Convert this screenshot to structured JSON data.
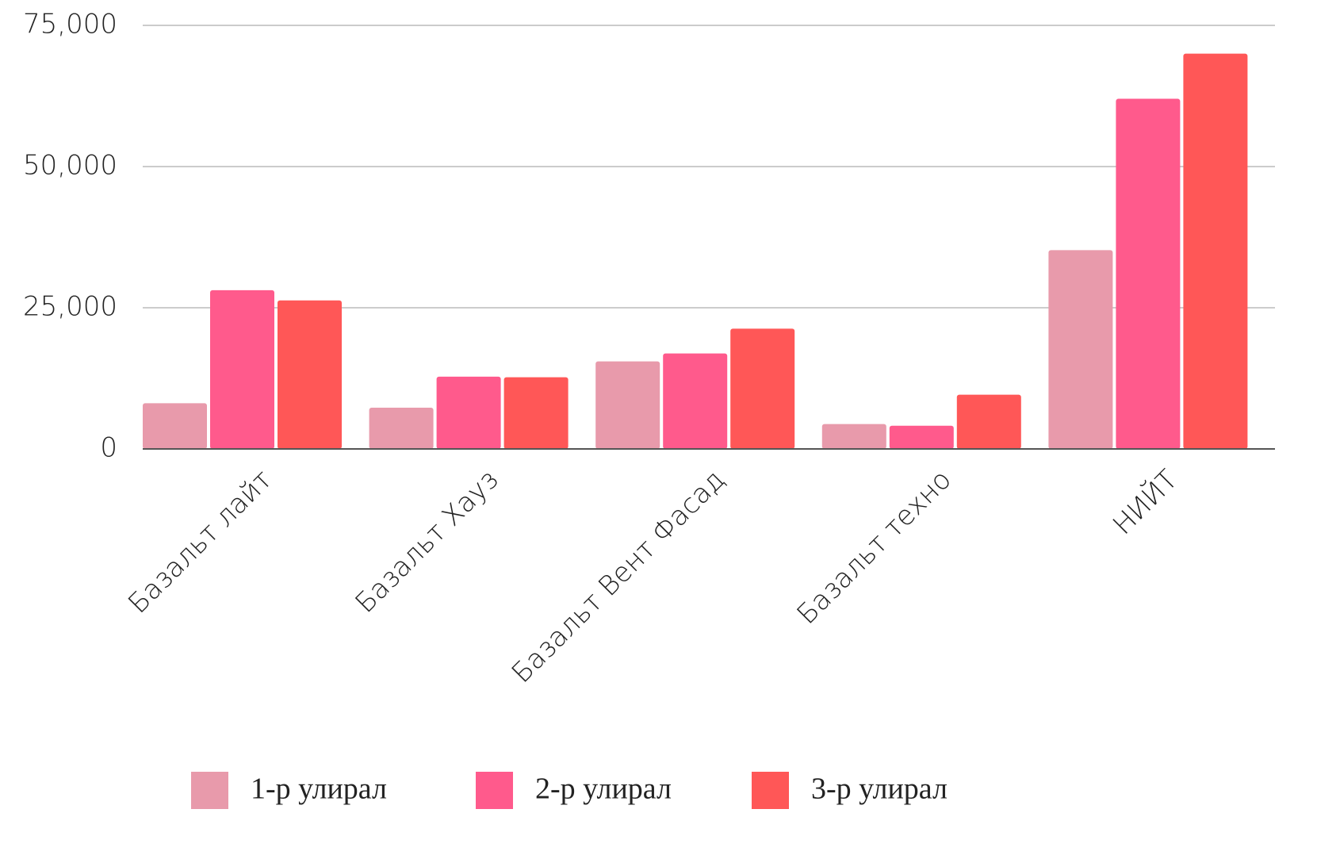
{
  "chart_data": {
    "type": "bar",
    "categories": [
      "Базальт лайт",
      "Базальт Хауз",
      "Базальт Вент Фасад",
      "Базальт техно",
      "НИЙТ"
    ],
    "series": [
      {
        "name": "1-р улирал",
        "color": "#e89aab",
        "values": [
          8100,
          7300,
          15500,
          4400,
          35200
        ]
      },
      {
        "name": "2-р улирал",
        "color": "#ff5a8c",
        "values": [
          28100,
          12800,
          16900,
          4100,
          62000
        ]
      },
      {
        "name": "3-р улирал",
        "color": "#ff5757",
        "values": [
          26300,
          12700,
          21300,
          9600,
          70000
        ]
      }
    ],
    "ylim": [
      0,
      75000
    ],
    "yticks": [
      0,
      {
        "value": 25000,
        "label": "25,000"
      },
      {
        "value": 50000,
        "label": "50,000"
      },
      {
        "value": 75000,
        "label": "75,000"
      }
    ],
    "grid": true,
    "legend": "bottom"
  }
}
